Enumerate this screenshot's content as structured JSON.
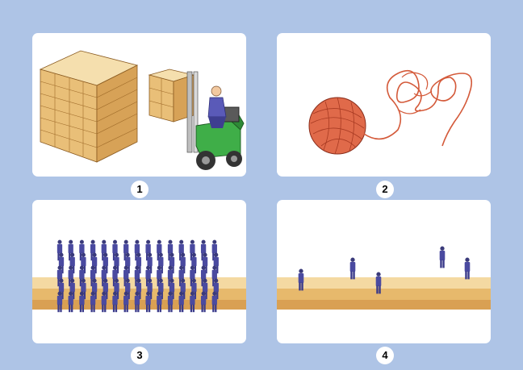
{
  "panels": [
    {
      "number": "1",
      "scene": "forklift-lumber"
    },
    {
      "number": "2",
      "scene": "yarn-ball-tangle"
    },
    {
      "number": "3",
      "scene": "crowd-of-men"
    },
    {
      "number": "4",
      "scene": "scattered-men"
    }
  ],
  "colors": {
    "background": "#aec4e6",
    "wood_light": "#f2d49a",
    "wood_mid": "#e3b46a",
    "wood_dark": "#c98e3c",
    "forklift": "#3fae48",
    "yarn": "#e06a4a",
    "suit": "#4a4aa0"
  }
}
